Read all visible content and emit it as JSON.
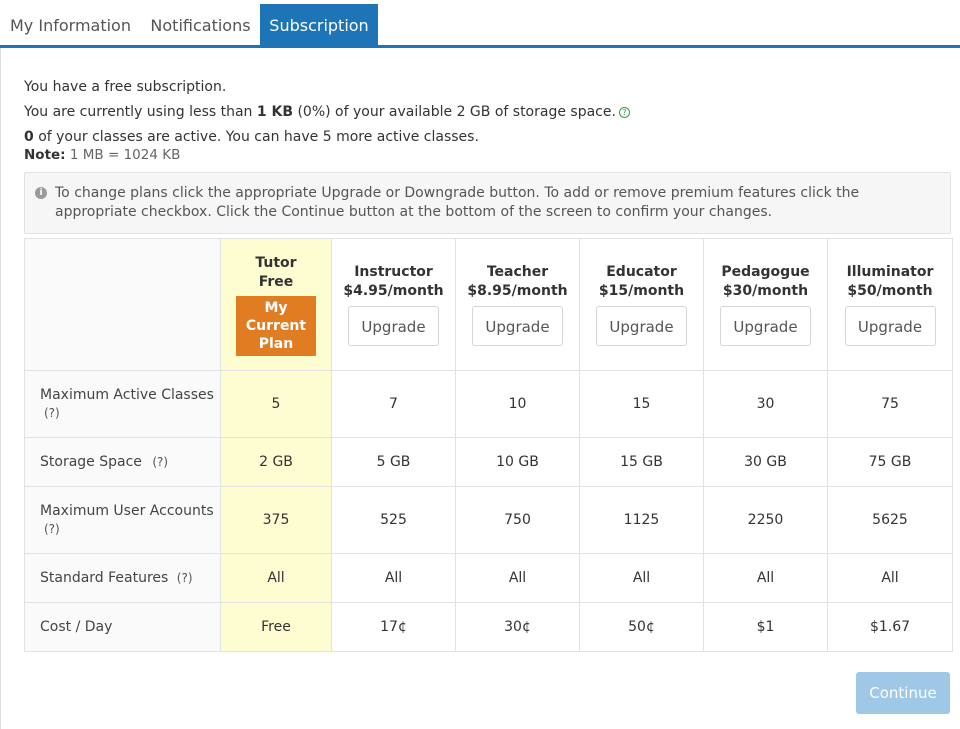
{
  "tabs": [
    {
      "label": "My Information",
      "active": false
    },
    {
      "label": "Notifications",
      "active": false
    },
    {
      "label": "Subscription",
      "active": true
    }
  ],
  "info": {
    "line1": "You have a free subscription.",
    "line2_pre": "You are currently using less than ",
    "line2_bold": "1 KB",
    "line2_post": " (0%) of your available 2 GB of storage space.",
    "line3_bold": "0",
    "line3_post": " of your classes are active. You can have 5 more active classes.",
    "note_label": "Note:",
    "note_value": " 1 MB = 1024 KB"
  },
  "alert": {
    "text": "To change plans click the appropriate Upgrade or Downgrade button. To add or remove premium features click the appropriate checkbox. Click the Continue button at the bottom of the screen to confirm your changes."
  },
  "plans": [
    {
      "name": "Tutor",
      "price": "Free",
      "current": true,
      "current_label": "My Current Plan"
    },
    {
      "name": "Instructor",
      "price": "$4.95/month",
      "button": "Upgrade"
    },
    {
      "name": "Teacher",
      "price": "$8.95/month",
      "button": "Upgrade"
    },
    {
      "name": "Educator",
      "price": "$15/month",
      "button": "Upgrade"
    },
    {
      "name": "Pedagogue",
      "price": "$30/month",
      "button": "Upgrade"
    },
    {
      "name": "Illuminator",
      "price": "$50/month",
      "button": "Upgrade"
    }
  ],
  "rows": [
    {
      "label": "Maximum Active Classes",
      "help": "(?)",
      "values": [
        "5",
        "7",
        "10",
        "15",
        "30",
        "75"
      ]
    },
    {
      "label": "Storage Space",
      "help": "(?)",
      "values": [
        "2 GB",
        "5 GB",
        "10 GB",
        "15 GB",
        "30 GB",
        "75 GB"
      ]
    },
    {
      "label": "Maximum User Accounts",
      "help": "(?)",
      "values": [
        "375",
        "525",
        "750",
        "1125",
        "2250",
        "5625"
      ]
    },
    {
      "label": "Standard Features",
      "help": "(?)",
      "values": [
        "All",
        "All",
        "All",
        "All",
        "All",
        "All"
      ]
    },
    {
      "label": "Cost / Day",
      "help": "",
      "values": [
        "Free",
        "17¢",
        "30¢",
        "50¢",
        "$1",
        "$1.67"
      ]
    }
  ],
  "continue_label": "Continue",
  "colors": {
    "tab_active": "#1d75b8",
    "current_plan": "#e07c22",
    "highlight": "#fefdd2",
    "continue": "#9ec8e6",
    "help_icon": "#2fa33f"
  }
}
